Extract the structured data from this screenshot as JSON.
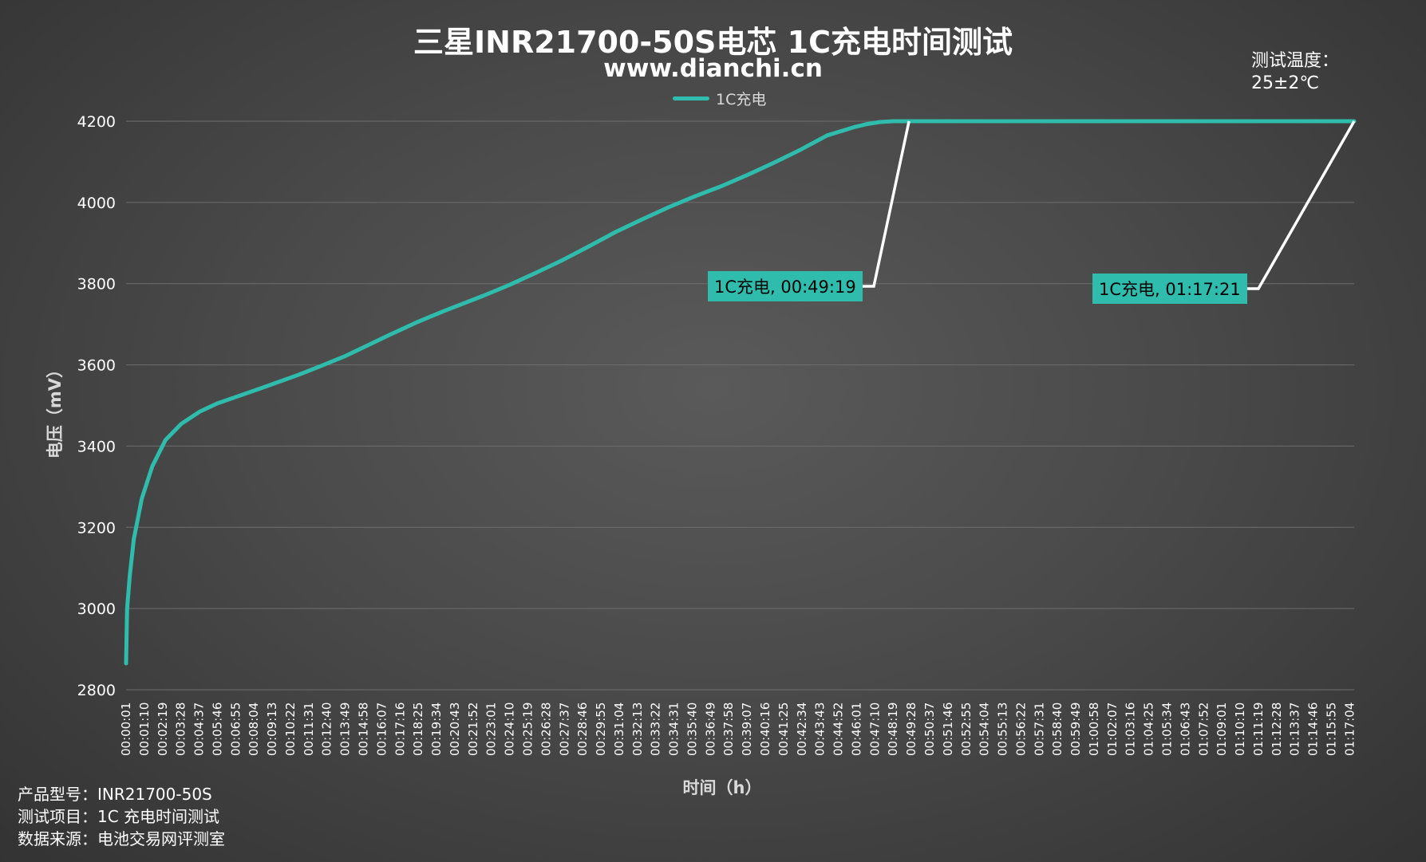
{
  "title": "三星INR21700-50S电芯 1C充电时间测试",
  "subtitle": "www.dianchi.cn",
  "test_temperature": {
    "label": "测试温度：",
    "value": "25±2℃"
  },
  "info": {
    "model": "产品型号：INR21700-50S",
    "item": "测试项目：1C 充电时间测试",
    "source": "数据来源：电池交易网评测室"
  },
  "colors": {
    "series": "#2fbcac",
    "leader": "#ffffff",
    "grid": "#6e6e6e"
  },
  "chart_data": {
    "type": "line",
    "title": "三星INR21700-50S电芯 1C充电时间测试",
    "xlabel": "时间（h）",
    "ylabel": "电压（mV）",
    "ylim": [
      2800,
      4200
    ],
    "yticks": [
      2800,
      3000,
      3200,
      3400,
      3600,
      3800,
      4000,
      4200
    ],
    "grid": true,
    "legend": "top-center",
    "x_tick_labels": [
      "00:00:01",
      "00:01:10",
      "00:02:19",
      "00:03:28",
      "00:04:37",
      "00:05:46",
      "00:06:55",
      "00:08:04",
      "00:09:13",
      "00:10:22",
      "00:11:31",
      "00:12:40",
      "00:13:49",
      "00:14:58",
      "00:16:07",
      "00:17:16",
      "00:18:25",
      "00:19:34",
      "00:20:43",
      "00:21:52",
      "00:23:01",
      "00:24:10",
      "00:25:19",
      "00:26:28",
      "00:27:37",
      "00:28:46",
      "00:29:55",
      "00:31:04",
      "00:32:13",
      "00:33:22",
      "00:34:31",
      "00:35:40",
      "00:36:49",
      "00:37:58",
      "00:39:07",
      "00:40:16",
      "00:41:25",
      "00:42:34",
      "00:43:43",
      "00:44:52",
      "00:46:01",
      "00:47:10",
      "00:48:19",
      "00:49:28",
      "00:50:37",
      "00:51:46",
      "00:52:55",
      "00:54:04",
      "00:55:13",
      "00:56:22",
      "00:57:31",
      "00:58:40",
      "00:59:49",
      "01:00:58",
      "01:02:07",
      "01:03:16",
      "01:04:25",
      "01:05:34",
      "01:06:43",
      "01:07:52",
      "01:09:01",
      "01:10:10",
      "01:11:19",
      "01:12:28",
      "01:13:37",
      "01:14:46",
      "01:15:55",
      "01:17:04"
    ],
    "series": [
      {
        "name": "1C充电",
        "x_seconds": [
          1,
          5,
          15,
          30,
          60,
          100,
          150,
          210,
          280,
          345,
          420,
          500,
          560,
          650,
          740,
          830,
          920,
          1000,
          1100,
          1200,
          1350,
          1450,
          1550,
          1650,
          1750,
          1850,
          1950,
          2050,
          2150,
          2250,
          2350,
          2450,
          2550,
          2650,
          2750,
          2800,
          2850,
          2900,
          2959,
          3000,
          3300,
          3600,
          3900,
          4200,
          4500,
          4641
        ],
        "y": [
          2865,
          3000,
          3080,
          3170,
          3270,
          3350,
          3415,
          3455,
          3485,
          3505,
          3522,
          3540,
          3554,
          3575,
          3598,
          3622,
          3650,
          3675,
          3705,
          3732,
          3770,
          3797,
          3827,
          3858,
          3892,
          3927,
          3958,
          3988,
          4015,
          4040,
          4068,
          4098,
          4130,
          4165,
          4185,
          4193,
          4198,
          4200,
          4200,
          4200,
          4200,
          4200,
          4200,
          4200,
          4200,
          4200
        ]
      }
    ],
    "annotations": [
      {
        "text": "1C充电, 00:49:19",
        "x_seconds": 2959,
        "y": 4200
      },
      {
        "text": "1C充电, 01:17:21",
        "x_seconds": 4641,
        "y": 4200
      }
    ]
  }
}
